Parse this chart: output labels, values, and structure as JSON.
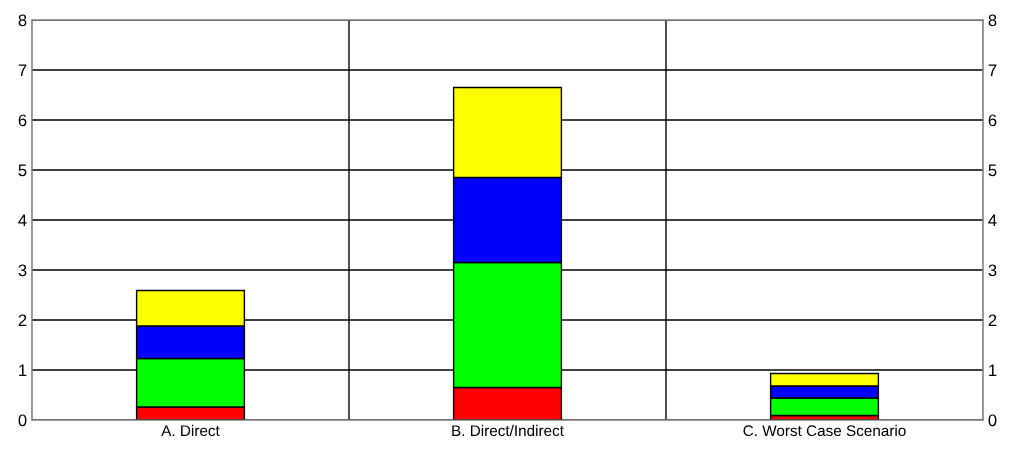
{
  "chart_data": {
    "type": "bar",
    "stacked": true,
    "categories": [
      "A. Direct",
      "B. Direct/Indirect",
      "C. Worst Case Scenario"
    ],
    "series": [
      {
        "color": "#ff0000",
        "values": [
          0.26,
          0.65,
          0.09
        ]
      },
      {
        "color": "#00ff00",
        "values": [
          0.97,
          2.5,
          0.35
        ]
      },
      {
        "color": "#0000ff",
        "values": [
          0.65,
          1.7,
          0.24
        ]
      },
      {
        "color": "#ffff00",
        "values": [
          0.71,
          1.8,
          0.25
        ]
      }
    ],
    "ylim": [
      0,
      8
    ],
    "yticks": [
      0,
      1,
      2,
      3,
      4,
      5,
      6,
      7,
      8
    ],
    "y2lim": [
      0,
      8
    ],
    "y2ticks": [
      0,
      1,
      2,
      3,
      4,
      5,
      6,
      7,
      8
    ],
    "grid": true
  }
}
